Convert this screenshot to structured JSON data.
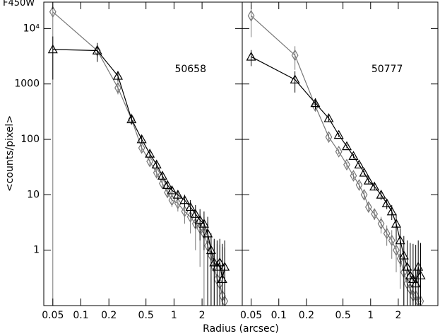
{
  "chart_data": [
    {
      "type": "line",
      "title": "F450W",
      "ylabel": "<counts/pixel>",
      "xlabel": "Radius (arcsec)",
      "annotation": "50658",
      "xscale": "log",
      "yscale": "log",
      "xlim": [
        0.04,
        5.4
      ],
      "ylim": [
        0.1,
        30000
      ],
      "xticks": [
        0.05,
        0.1,
        0.2,
        0.5,
        1,
        2
      ],
      "yticks": [
        1,
        10,
        100,
        1000,
        {
          "value": 10000,
          "label": "10⁴"
        }
      ],
      "x": [
        0.05,
        0.15,
        0.25,
        0.35,
        0.45,
        0.55,
        0.65,
        0.75,
        0.85,
        0.95,
        1.1,
        1.3,
        1.5,
        1.7,
        1.9,
        2.1,
        2.3,
        2.5,
        2.7,
        2.9,
        3.1,
        3.3,
        3.5
      ],
      "series": [
        {
          "marker": "diamond",
          "color": "#777777",
          "values": [
            20000,
            4000,
            850,
            230,
            70,
            40,
            25,
            16,
            11,
            8,
            7,
            5,
            4,
            3,
            2.5,
            2,
            1.2,
            0.8,
            0.5,
            0.3,
            0.25,
            0.15,
            0.12
          ],
          "errors": [
            20000,
            1000,
            200,
            40,
            10,
            6,
            4,
            3,
            2,
            2,
            2,
            2,
            2,
            2,
            2,
            2,
            2,
            1,
            1,
            1,
            1,
            1,
            1
          ]
        },
        {
          "marker": "triangle",
          "color": "#000000",
          "values": [
            4200,
            4000,
            1400,
            230,
            100,
            55,
            35,
            22,
            15,
            12,
            10,
            8,
            6,
            4.5,
            3.5,
            3,
            2,
            1,
            0.6,
            0.5,
            0.6,
            0.3,
            0.5
          ],
          "errors": [
            3000,
            1500,
            300,
            40,
            15,
            8,
            5,
            3,
            2,
            2,
            2,
            2,
            2,
            2,
            2,
            2,
            2,
            1,
            1,
            1,
            1,
            1,
            1
          ]
        }
      ]
    },
    {
      "type": "line",
      "annotation": "50777",
      "xscale": "log",
      "yscale": "log",
      "xlim": [
        0.04,
        5.4
      ],
      "ylim": [
        0.1,
        30000
      ],
      "xticks": [
        0.05,
        0.1,
        0.2,
        0.5,
        1,
        2
      ],
      "yticks": [
        1,
        10,
        100,
        1000,
        10000
      ],
      "x": [
        0.05,
        0.15,
        0.25,
        0.35,
        0.45,
        0.55,
        0.65,
        0.75,
        0.85,
        0.95,
        1.1,
        1.3,
        1.5,
        1.7,
        1.9,
        2.1,
        2.3,
        2.5,
        2.7,
        2.9,
        3.1,
        3.3,
        3.5
      ],
      "series": [
        {
          "marker": "diamond",
          "color": "#777777",
          "values": [
            17000,
            3300,
            400,
            110,
            60,
            35,
            22,
            15,
            10,
            6,
            4.5,
            3,
            2,
            1.5,
            1,
            0.7,
            0.4,
            0.25,
            0.2,
            0.15,
            0.15,
            0.12,
            0.12
          ],
          "errors": [
            10000,
            1500,
            80,
            15,
            6,
            4,
            3,
            2,
            1.5,
            1,
            1,
            1,
            0.8,
            0.8,
            0.6,
            0.5,
            0.4,
            0.3,
            0.3,
            0.3,
            0.3,
            0.3,
            0.3
          ]
        },
        {
          "marker": "triangle",
          "color": "#000000",
          "values": [
            3100,
            1200,
            450,
            240,
            120,
            75,
            50,
            35,
            25,
            18,
            14,
            10,
            7,
            5,
            3,
            1.5,
            0.8,
            0.5,
            0.35,
            0.3,
            0.25,
            0.5,
            0.35
          ],
          "errors": [
            1000,
            500,
            100,
            30,
            10,
            6,
            4,
            3,
            2,
            2,
            2,
            2,
            1.5,
            1.5,
            1.5,
            1,
            1,
            1,
            1,
            1,
            1,
            1,
            1
          ]
        }
      ]
    }
  ]
}
